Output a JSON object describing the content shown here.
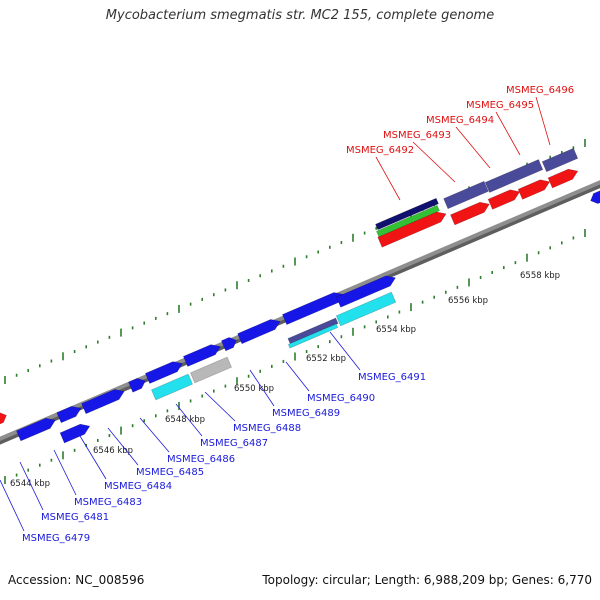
{
  "title": "Mycobacterium smegmatis str. MC2 155, complete genome",
  "footer": {
    "accession": "Accession: NC_008596",
    "summary": "Topology: circular; Length: 6,988,209 bp; Genes: 6,770"
  },
  "colors": {
    "backbone": "#8e8e8e",
    "tick": "#2f7d2f",
    "blue_gene": "#1616e6",
    "red_gene": "#f01414",
    "slate_gene": "#4a4a9a",
    "cyan_gene": "#22e0ec",
    "grey_gene": "#b8b8b8",
    "navy_gene": "#10106e",
    "green_gene": "#34c034",
    "blue_label": "#1a1adc",
    "red_label": "#e01010"
  },
  "scale_labels": [
    "6544 kbp",
    "6546 kbp",
    "6548 kbp",
    "6550 kbp",
    "6552 kbp",
    "6554 kbp",
    "6556 kbp",
    "6558 kbp"
  ],
  "labels_blue": [
    "MSMEG_6479",
    "MSMEG_6481",
    "MSMEG_6483",
    "MSMEG_6484",
    "MSMEG_6485",
    "MSMEG_6486",
    "MSMEG_6487",
    "MSMEG_6488",
    "MSMEG_6489",
    "MSMEG_6490",
    "MSMEG_6491"
  ],
  "labels_red": [
    "MSMEG_6492",
    "MSMEG_6493",
    "MSMEG_6494",
    "MSMEG_6495",
    "MSMEG_6496"
  ]
}
